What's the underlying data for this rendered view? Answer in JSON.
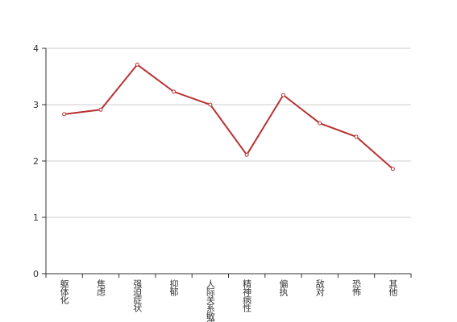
{
  "chart_data": {
    "type": "line",
    "categories": [
      "躯体化",
      "焦虑",
      "强迫症状",
      "抑郁",
      "人际关系敏感",
      "精神病性",
      "偏执",
      "敌对",
      "恐怖",
      "其他"
    ],
    "series": [
      {
        "color": "#b83232",
        "values": [
          2.83,
          2.91,
          3.71,
          3.23,
          3.0,
          2.11,
          3.17,
          2.67,
          2.43,
          1.86
        ]
      }
    ],
    "ylim": [
      0,
      4
    ],
    "yticks": [
      0,
      1,
      2,
      3,
      4
    ],
    "grid": true
  }
}
